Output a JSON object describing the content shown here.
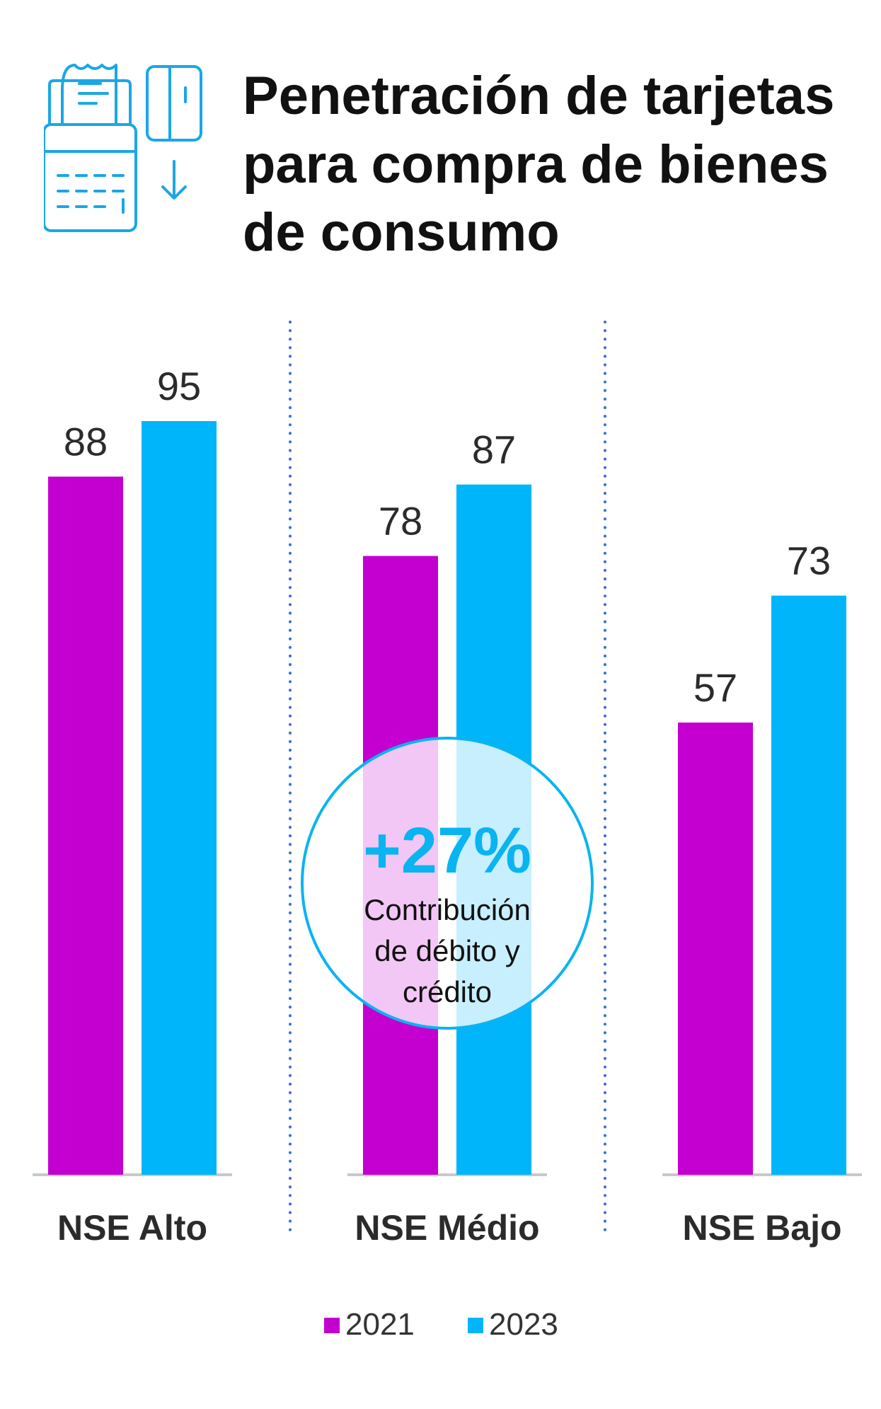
{
  "title_lines": [
    "Penetración de tarjetas",
    "para compra de bienes",
    "de consumo"
  ],
  "icon": "pos-terminal-card-icon",
  "colors": {
    "series_2021": "#c300d0",
    "series_2023": "#00b5f9",
    "accent": "#0ab4f0",
    "axis": "#c8c8c8",
    "divider": "#3a6fd8"
  },
  "chart_data": {
    "type": "bar",
    "categories": [
      "NSE Alto",
      "NSE Médio",
      "NSE Bajo"
    ],
    "series": [
      {
        "name": "2021",
        "values": [
          88,
          78,
          57
        ]
      },
      {
        "name": "2023",
        "values": [
          95,
          87,
          73
        ]
      }
    ],
    "ylim": [
      0,
      100
    ],
    "grid": false,
    "legend": "bottom-center",
    "annotation": {
      "value": "+27%",
      "text_lines": [
        "Contribución",
        "de débito y",
        "crédito"
      ],
      "category": "NSE Médio"
    }
  }
}
